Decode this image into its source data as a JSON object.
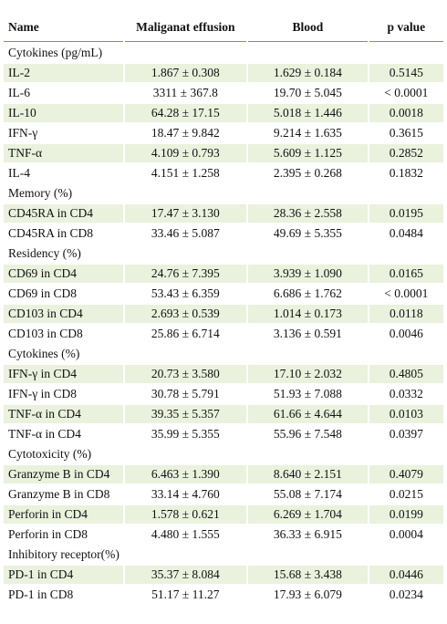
{
  "headers": [
    "Name",
    "Maliganat effusion",
    "Blood",
    "p value"
  ],
  "rows": [
    {
      "kind": "section",
      "name": "Cytokines (pg/mL)"
    },
    {
      "kind": "data",
      "name": "IL-2",
      "effusion": "1.867 ± 0.308",
      "blood": "1.629 ± 0.184",
      "p": "0.5145"
    },
    {
      "kind": "data",
      "name": "IL-6",
      "effusion": "3311 ± 367.8",
      "blood": "19.70 ± 5.045",
      "p": "< 0.0001"
    },
    {
      "kind": "data",
      "name": "IL-10",
      "effusion": "64.28 ± 17.15",
      "blood": "5.018 ± 1.446",
      "p": "0.0018"
    },
    {
      "kind": "data",
      "name": "IFN-γ",
      "effusion": "18.47 ± 9.842",
      "blood": "9.214 ± 1.635",
      "p": "0.3615"
    },
    {
      "kind": "data",
      "name": "TNF-α",
      "effusion": "4.109 ± 0.793",
      "blood": "5.609 ± 1.125",
      "p": "0.2852"
    },
    {
      "kind": "data",
      "name": "IL-4",
      "effusion": "4.151 ± 1.258",
      "blood": "2.395 ± 0.268",
      "p": "0.1832"
    },
    {
      "kind": "section",
      "name": "Memory (%)"
    },
    {
      "kind": "data",
      "name": "CD45RA in CD4",
      "effusion": "17.47 ± 3.130",
      "blood": "28.36 ± 2.558",
      "p": "0.0195"
    },
    {
      "kind": "data",
      "name": "CD45RA in CD8",
      "effusion": "33.46 ± 5.087",
      "blood": "49.69 ± 5.355",
      "p": "0.0484"
    },
    {
      "kind": "section",
      "name": "Residency (%)"
    },
    {
      "kind": "data",
      "name": "CD69 in CD4",
      "effusion": "24.76 ± 7.395",
      "blood": "3.939 ± 1.090",
      "p": "0.0165"
    },
    {
      "kind": "data",
      "name": "CD69 in CD8",
      "effusion": "53.43 ± 6.359",
      "blood": "6.686 ± 1.762",
      "p": "< 0.0001"
    },
    {
      "kind": "data",
      "name": "CD103 in CD4",
      "effusion": "2.693 ± 0.539",
      "blood": "1.014 ± 0.173",
      "p": "0.0118"
    },
    {
      "kind": "data",
      "name": "CD103 in CD8",
      "effusion": "25.86 ± 6.714",
      "blood": "3.136 ± 0.591",
      "p": "0.0046"
    },
    {
      "kind": "section",
      "name": "Cytokines (%)"
    },
    {
      "kind": "data",
      "name": "IFN-γ in CD4",
      "effusion": "20.73 ± 3.580",
      "blood": "17.10 ± 2.032",
      "p": "0.4805"
    },
    {
      "kind": "data",
      "name": "IFN-γ in CD8",
      "effusion": "30.78 ± 5.791",
      "blood": "51.93 ± 7.088",
      "p": "0.0332"
    },
    {
      "kind": "data",
      "name": "TNF-α in CD4",
      "effusion": "39.35 ± 5.357",
      "blood": "61.66 ± 4.644",
      "p": "0.0103"
    },
    {
      "kind": "data",
      "name": "TNF-α in CD4",
      "effusion": "35.99 ± 5.355",
      "blood": "55.96 ± 7.548",
      "p": "0.0397"
    },
    {
      "kind": "section",
      "name": "Cytotoxicity (%)"
    },
    {
      "kind": "data",
      "name": "Granzyme B in CD4",
      "effusion": "6.463 ± 1.390",
      "blood": "8.640 ± 2.151",
      "p": "0.4079"
    },
    {
      "kind": "data",
      "name": "Granzyme B in CD8",
      "effusion": "33.14 ± 4.760",
      "blood": "55.08 ± 7.174",
      "p": "0.0215"
    },
    {
      "kind": "data",
      "name": "Perforin in CD4",
      "effusion": "1.578 ± 0.621",
      "blood": "6.269 ± 1.704",
      "p": "0.0199"
    },
    {
      "kind": "data",
      "name": "Perforin in CD8",
      "effusion": "4.480 ± 1.555",
      "blood": "36.33 ± 6.915",
      "p": "0.0004"
    },
    {
      "kind": "section",
      "name": "Inhibitory receptor(%)"
    },
    {
      "kind": "data",
      "name": "PD-1 in CD4",
      "effusion": "35.37 ± 8.084",
      "blood": "15.68 ± 3.438",
      "p": "0.0446"
    },
    {
      "kind": "data",
      "name": "PD-1 in CD8",
      "effusion": "51.17 ± 11.27",
      "blood": "17.93 ± 6.079",
      "p": "0.0234"
    }
  ]
}
